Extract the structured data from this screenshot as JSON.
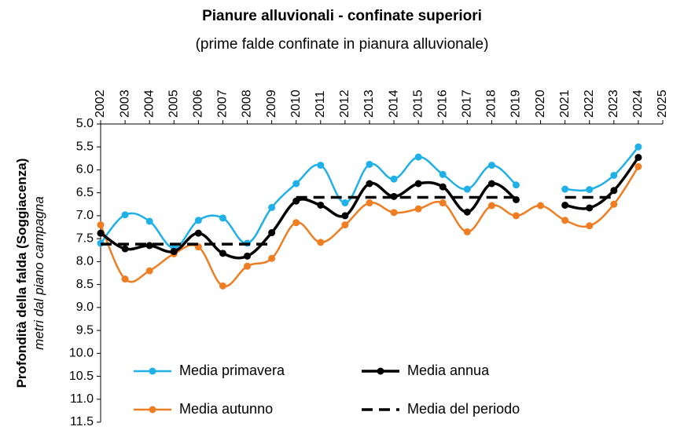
{
  "chart_data": {
    "type": "line",
    "title": "Pianure alluvionali  - confinate superiori",
    "subtitle": "(prime falde confinate in pianura alluvionale)",
    "ylabel": "Profondità della falda (Soggiacenza)",
    "ylabel2": "metri dal piano campagna",
    "xlabel": "",
    "categories": [
      "2002",
      "2003",
      "2004",
      "2005",
      "2006",
      "2007",
      "2008",
      "2009",
      "2010",
      "2011",
      "2012",
      "2013",
      "2014",
      "2015",
      "2016",
      "2017",
      "2018",
      "2019",
      "2020",
      "2021",
      "2022",
      "2023",
      "2024",
      "2025"
    ],
    "yticks": [
      "5.0",
      "5.5",
      "6.0",
      "6.5",
      "7.0",
      "7.5",
      "8.0",
      "8.5",
      "9.0",
      "9.5",
      "10.0",
      "10.5",
      "11.0",
      "11.5"
    ],
    "ylim": [
      5.0,
      11.5
    ],
    "y_inverted": true,
    "series": [
      {
        "name": "Media primavera",
        "color": "#1fb0e8",
        "style": "solid",
        "values": [
          7.6,
          6.98,
          7.12,
          7.7,
          7.1,
          7.05,
          7.6,
          6.82,
          6.3,
          5.9,
          6.72,
          5.88,
          6.2,
          5.72,
          6.1,
          6.42,
          5.9,
          6.33,
          null,
          6.42,
          6.43,
          6.12,
          5.5,
          null
        ]
      },
      {
        "name": "Media annua",
        "color": "#000000",
        "style": "solid",
        "values": [
          7.38,
          7.72,
          7.65,
          7.78,
          7.38,
          7.82,
          7.88,
          7.37,
          6.68,
          6.77,
          7.0,
          6.3,
          6.58,
          6.3,
          6.37,
          6.92,
          6.3,
          6.65,
          null,
          6.77,
          6.83,
          6.45,
          5.73,
          null
        ]
      },
      {
        "name": "Media autunno",
        "color": "#ef7d22",
        "style": "solid",
        "values": [
          7.2,
          8.38,
          8.2,
          7.83,
          7.68,
          8.53,
          8.1,
          7.93,
          7.15,
          7.58,
          7.2,
          6.72,
          6.93,
          6.85,
          6.72,
          7.35,
          6.78,
          7.0,
          6.78,
          7.1,
          7.22,
          6.75,
          5.93,
          null
        ]
      },
      {
        "name": "Media del periodo",
        "color": "#000000",
        "style": "dashed",
        "segments": [
          {
            "x_start": "2002",
            "x_end": "2009",
            "value": 7.62
          },
          {
            "x_start": "2010",
            "x_end": "2019",
            "value": 6.6
          },
          {
            "x_start": "2021",
            "x_end": "2023",
            "value": 6.6
          }
        ]
      }
    ],
    "legend": {
      "placement": "bottom-inside",
      "entries": [
        "Media primavera",
        "Media annua",
        "Media autunno",
        "Media del periodo"
      ]
    }
  }
}
